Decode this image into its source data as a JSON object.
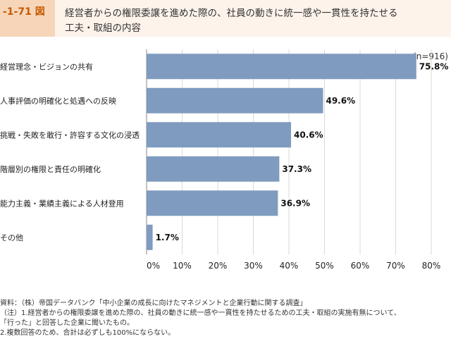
{
  "figure": {
    "id": "-1-71 図",
    "title_line1": "経営者からの権限委譲を進めた際の、社員の動きに統一感や一貫性を持たせる",
    "title_line2": "工夫・取組の内容"
  },
  "chart_data": {
    "type": "bar",
    "orientation": "horizontal",
    "n_label": "(n=916)",
    "categories": [
      "経営理念・ビジョンの共有",
      "人事評価の明確化と処遇への反映",
      "挑戦・失敗を敢行・許容する文化の浸透",
      "階層別の権限と責任の明確化",
      "能力主義・業績主義による人材登用",
      "その他"
    ],
    "values": [
      75.8,
      49.6,
      40.6,
      37.3,
      36.9,
      1.7
    ],
    "value_labels": [
      "75.8%",
      "49.6%",
      "40.6%",
      "37.3%",
      "36.9%",
      "1.7%"
    ],
    "xlim": [
      0,
      80
    ],
    "ticks": [
      "0%",
      "10%",
      "20%",
      "30%",
      "40%",
      "50%",
      "60%",
      "70%",
      "80%"
    ],
    "grid": true,
    "colors": {
      "bar": "#7f9bbf",
      "grid": "#d9d9d9",
      "axis": "#888888"
    }
  },
  "notes": {
    "source": "資料：（株）帝国データバンク「中小企業の成長に向けたマネジメントと企業行動に関する調査」",
    "note1": "（注）1.経営者からの権限委譲を進めた際の、社員の動きに統一感や一貫性を持たせるための工夫・取組の実施有無について、",
    "note1b": "「行った」と回答した企業に聞いたもの。",
    "note2": "2.複数回答のため、合計は必ずしも100%にならない。"
  }
}
